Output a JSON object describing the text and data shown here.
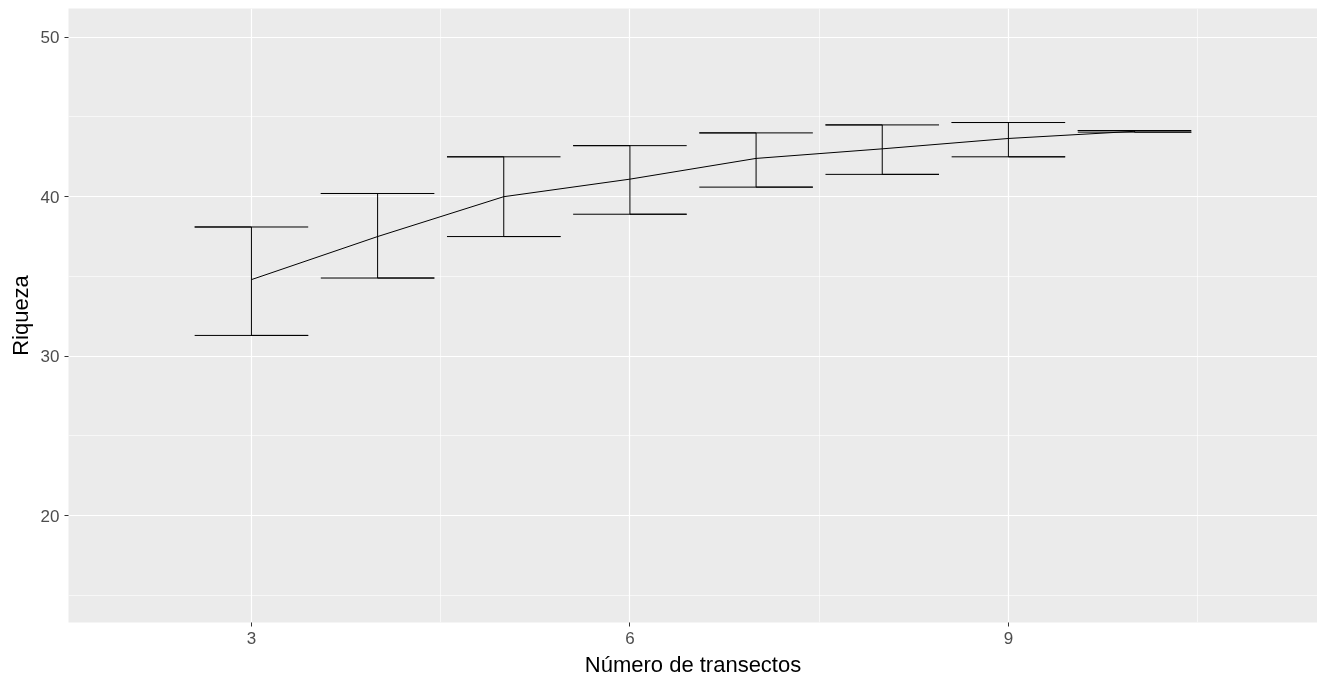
{
  "chart_data": {
    "type": "line",
    "xlabel": "Número de transectos",
    "ylabel": "Riqueza",
    "x": [
      3,
      4,
      5,
      6,
      7,
      8,
      9,
      10
    ],
    "series": [
      {
        "color": "#000000",
        "values": [
          34.8,
          37.5,
          40.0,
          41.1,
          42.4,
          43.0,
          43.65,
          44.1
        ],
        "errors": [
          [
            31.3,
            38.1
          ],
          [
            34.9,
            40.2
          ],
          [
            37.5,
            42.5
          ],
          [
            38.9,
            43.2
          ],
          [
            40.6,
            44.0
          ],
          [
            41.4,
            44.5
          ],
          [
            42.5,
            44.65
          ],
          [
            44.05,
            44.15
          ]
        ]
      }
    ],
    "xlim": [
      1.55,
      11.45
    ],
    "ylim": [
      13.3,
      51.8
    ],
    "xticks": [
      3,
      6,
      9
    ],
    "yticks": [
      20,
      30,
      40,
      50
    ],
    "grid": true,
    "marker": "none",
    "line_style": "solid"
  }
}
